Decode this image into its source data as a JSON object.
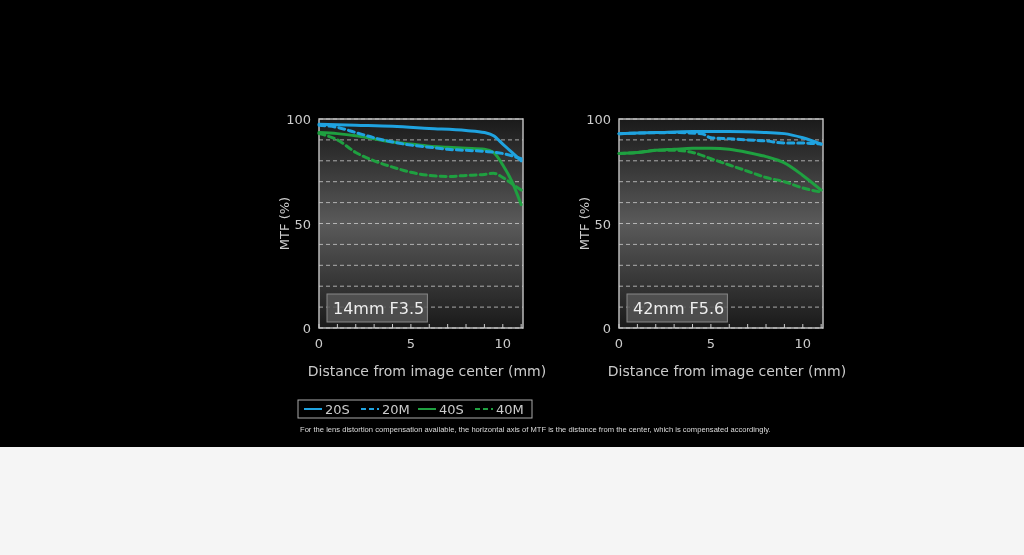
{
  "chart_data": [
    {
      "type": "line",
      "title": "14mm F3.5",
      "xlabel": "Distance from image center (mm)",
      "ylabel": "MTF (%)",
      "xlim": [
        0,
        11.1
      ],
      "ylim": [
        0,
        100
      ],
      "xticks": [
        0,
        {
          "value": 1,
          "label": null
        },
        {
          "value": 2,
          "label": null
        },
        {
          "value": 3,
          "label": null
        },
        {
          "value": 4,
          "label": null
        },
        5,
        {
          "value": 6,
          "label": null
        },
        {
          "value": 7,
          "label": null
        },
        {
          "value": 8,
          "label": null
        },
        {
          "value": 9,
          "label": null
        },
        10,
        {
          "value": 11,
          "label": null
        }
      ],
      "yticks": [
        0,
        {
          "value": 10,
          "label": null
        },
        {
          "value": 20,
          "label": null
        },
        {
          "value": 30,
          "label": null
        },
        {
          "value": 40,
          "label": null
        },
        50,
        {
          "value": 60,
          "label": null
        },
        {
          "value": 70,
          "label": null
        },
        {
          "value": 80,
          "label": null
        },
        {
          "value": 90,
          "label": null
        },
        100
      ],
      "grid": "y",
      "legend": "bottom",
      "annotations": [
        "For the lens distortion compensation available, the horizontal axis of MTF is the distance from the center, which is compensated accordingly."
      ],
      "series": [
        {
          "name": "20S",
          "color": "#1fa3e0",
          "line_style": "solid",
          "x": [
            0,
            2,
            4,
            6,
            8,
            9,
            9.5,
            10,
            10.5,
            11
          ],
          "values": [
            97.5,
            97,
            96.5,
            95.5,
            94.5,
            93.5,
            92,
            88,
            84,
            80
          ]
        },
        {
          "name": "20M",
          "color": "#1fa3e0",
          "line_style": "dashed",
          "x": [
            0,
            1,
            2,
            3,
            4,
            5,
            6,
            7,
            8,
            9,
            10,
            11
          ],
          "values": [
            97,
            96,
            93.5,
            91,
            89,
            87.5,
            86.5,
            85.5,
            85,
            84.5,
            83.5,
            81
          ]
        },
        {
          "name": "40S",
          "color": "#1fa040",
          "line_style": "solid",
          "x": [
            0,
            1,
            2,
            3,
            4,
            5,
            6,
            7,
            8,
            9,
            9.5,
            10,
            10.5,
            11
          ],
          "values": [
            93.5,
            93,
            92,
            90.5,
            89,
            88,
            87,
            86.5,
            86,
            85.5,
            84,
            78,
            70,
            59
          ]
        },
        {
          "name": "40M",
          "color": "#1fa040",
          "line_style": "dashed",
          "x": [
            0,
            1,
            2,
            3,
            4,
            5,
            6,
            7,
            8,
            9,
            9.5,
            10,
            10.5,
            11
          ],
          "values": [
            93,
            90,
            84,
            80,
            77,
            74.5,
            73,
            72.5,
            73,
            73.5,
            74,
            72,
            69,
            66
          ]
        }
      ]
    },
    {
      "type": "line",
      "title": "42mm F5.6",
      "xlabel": "Distance from image center (mm)",
      "ylabel": "MTF (%)",
      "xlim": [
        0,
        11.1
      ],
      "ylim": [
        0,
        100
      ],
      "xticks": [
        0,
        {
          "value": 1,
          "label": null
        },
        {
          "value": 2,
          "label": null
        },
        {
          "value": 3,
          "label": null
        },
        {
          "value": 4,
          "label": null
        },
        5,
        {
          "value": 6,
          "label": null
        },
        {
          "value": 7,
          "label": null
        },
        {
          "value": 8,
          "label": null
        },
        {
          "value": 9,
          "label": null
        },
        10,
        {
          "value": 11,
          "label": null
        }
      ],
      "yticks": [
        0,
        {
          "value": 10,
          "label": null
        },
        {
          "value": 20,
          "label": null
        },
        {
          "value": 30,
          "label": null
        },
        {
          "value": 40,
          "label": null
        },
        50,
        {
          "value": 60,
          "label": null
        },
        {
          "value": 70,
          "label": null
        },
        {
          "value": 80,
          "label": null
        },
        {
          "value": 90,
          "label": null
        },
        100
      ],
      "grid": "y",
      "series": [
        {
          "name": "20S",
          "color": "#1fa3e0",
          "line_style": "solid",
          "x": [
            0,
            2,
            4,
            6,
            8,
            9,
            10,
            11
          ],
          "values": [
            93,
            93.5,
            94,
            94,
            93.5,
            93,
            91,
            88
          ]
        },
        {
          "name": "20M",
          "color": "#1fa3e0",
          "line_style": "dashed",
          "x": [
            0,
            3,
            4.5,
            5,
            6,
            7,
            8,
            9,
            10,
            11
          ],
          "values": [
            93,
            93.5,
            93,
            91,
            90.5,
            90,
            89.5,
            88.5,
            88.5,
            88
          ]
        },
        {
          "name": "40S",
          "color": "#1fa040",
          "line_style": "solid",
          "x": [
            0,
            1,
            2,
            3,
            4,
            5,
            6,
            7,
            8,
            9,
            10,
            11
          ],
          "values": [
            83.5,
            84,
            85,
            85.5,
            86,
            86,
            85.5,
            84,
            82,
            79,
            73,
            66
          ]
        },
        {
          "name": "40M",
          "color": "#1fa040",
          "line_style": "dashed",
          "x": [
            0,
            1,
            2,
            3,
            4,
            5,
            6,
            7,
            8,
            9,
            10,
            11
          ],
          "values": [
            83.5,
            84,
            85,
            85,
            84,
            81,
            78,
            75,
            72,
            70,
            67,
            65
          ]
        }
      ]
    }
  ]
}
